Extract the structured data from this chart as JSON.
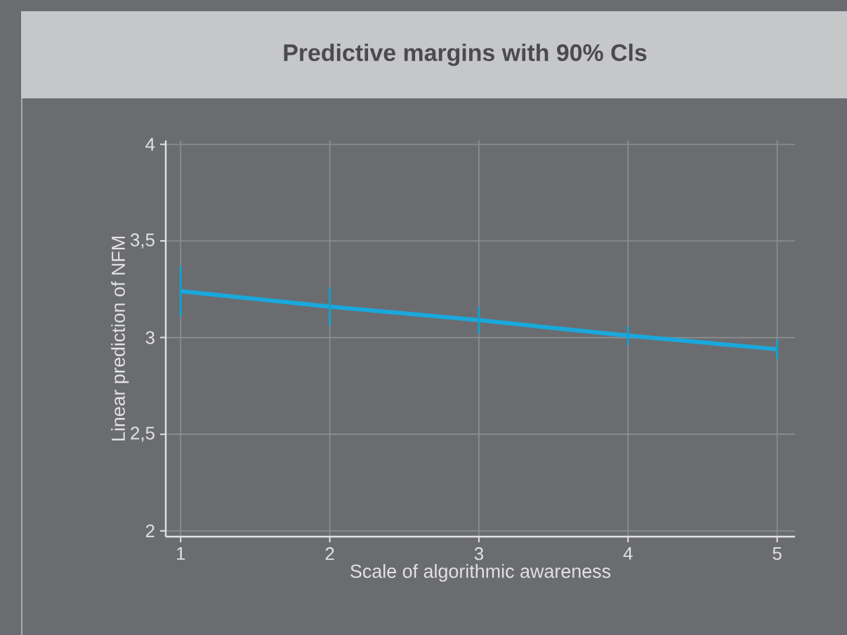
{
  "chart_data": {
    "type": "line",
    "title": "Predictive margins with 90% Cls",
    "xlabel": "Scale of algorithmic awareness",
    "ylabel": "Linear prediction of NFM",
    "x": [
      1,
      2,
      3,
      4,
      5
    ],
    "series": [
      {
        "color": "#1aa8dc",
        "values": [
          3.24,
          3.16,
          3.09,
          3.01,
          2.94
        ],
        "errors": [
          0.13,
          0.1,
          0.07,
          0.05,
          0.05
        ]
      }
    ],
    "xlim": [
      0.9,
      5.12
    ],
    "ylim": [
      1.97,
      4.02
    ],
    "xticks": [
      1,
      2,
      3,
      4,
      5
    ],
    "yticks": [
      2,
      {
        "value": 2.5,
        "label": "2,5"
      },
      3,
      {
        "value": 3.5,
        "label": "3,5"
      },
      4
    ],
    "grid": true,
    "marker": "none",
    "line_style": "solid"
  }
}
